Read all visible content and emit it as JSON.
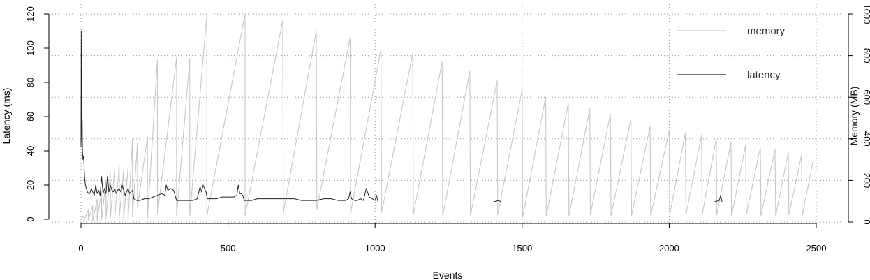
{
  "chart_data": {
    "type": "line",
    "xlabel": "Events",
    "ylabel": "Latency (ms)",
    "y2label": "Memory (MB)",
    "xlim": [
      0,
      2500
    ],
    "ylim": [
      0,
      120
    ],
    "y2lim": [
      0,
      1000
    ],
    "x_ticks": [
      "0",
      "500",
      "1000",
      "1500",
      "2000",
      "2500"
    ],
    "y_ticks": [
      "0",
      "20",
      "40",
      "60",
      "80",
      "100",
      "120"
    ],
    "y2_ticks": [
      "0",
      "200",
      "400",
      "600",
      "800",
      "1000"
    ],
    "grid": true,
    "legend": {
      "position": "top-right",
      "entries": [
        "memory",
        "latency"
      ]
    },
    "series": [
      {
        "name": "memory",
        "axis": "right",
        "color": "#c8c8c8",
        "x": [
          0,
          10,
          10,
          25,
          25,
          40,
          40,
          55,
          55,
          70,
          70,
          85,
          85,
          100,
          100,
          115,
          115,
          130,
          130,
          145,
          145,
          160,
          160,
          175,
          175,
          192,
          192,
          226,
          226,
          260,
          260,
          325,
          325,
          370,
          370,
          428,
          428,
          558,
          558,
          560,
          560,
          686,
          686,
          688,
          688,
          800,
          800,
          802,
          802,
          915,
          915,
          917,
          917,
          1020,
          1020,
          1022,
          1022,
          1128,
          1128,
          1130,
          1130,
          1228,
          1228,
          1230,
          1230,
          1322,
          1322,
          1324,
          1324,
          1415,
          1415,
          1417,
          1417,
          1500,
          1500,
          1502,
          1502,
          1580,
          1580,
          1582,
          1582,
          1657,
          1657,
          1659,
          1659,
          1730,
          1730,
          1732,
          1732,
          1800,
          1800,
          1802,
          1802,
          1870,
          1870,
          1872,
          1872,
          1935,
          1935,
          1937,
          1937,
          2000,
          2000,
          2002,
          2002,
          2055,
          2055,
          2057,
          2057,
          2110,
          2110,
          2112,
          2112,
          2160,
          2160,
          2162,
          2162,
          2210,
          2210,
          2212,
          2212,
          2260,
          2260,
          2262,
          2262,
          2310,
          2310,
          2312,
          2312,
          2360,
          2360,
          2362,
          2362,
          2405,
          2405,
          2407,
          2407,
          2450,
          2450,
          2452,
          2452,
          2490
        ],
        "values": [
          15,
          30,
          5,
          60,
          10,
          80,
          5,
          110,
          8,
          150,
          10,
          200,
          15,
          240,
          20,
          260,
          25,
          270,
          20,
          250,
          15,
          260,
          10,
          400,
          25,
          380,
          70,
          410,
          20,
          780,
          40,
          790,
          30,
          785,
          30,
          1000,
          30,
          1000,
          30,
          45,
          45,
          970,
          970,
          45,
          45,
          920,
          920,
          60,
          60,
          885,
          885,
          45,
          45,
          830,
          830,
          45,
          45,
          810,
          810,
          35,
          35,
          770,
          770,
          30,
          30,
          725,
          725,
          30,
          30,
          680,
          680,
          35,
          35,
          635,
          635,
          25,
          25,
          600,
          600,
          30,
          30,
          570,
          570,
          30,
          30,
          545,
          545,
          35,
          35,
          520,
          520,
          30,
          30,
          495,
          495,
          30,
          30,
          460,
          460,
          30,
          30,
          440,
          440,
          35,
          35,
          430,
          430,
          35,
          35,
          415,
          415,
          35,
          35,
          400,
          400,
          35,
          35,
          385,
          385,
          30,
          30,
          370,
          370,
          35,
          35,
          360,
          360,
          30,
          30,
          350,
          350,
          30,
          30,
          335,
          335,
          35,
          35,
          320,
          320,
          30,
          30,
          300
        ]
      },
      {
        "name": "latency",
        "axis": "left",
        "color": "#222222",
        "x": [
          0,
          1,
          2,
          3,
          4,
          5,
          7,
          9,
          12,
          15,
          18,
          22,
          26,
          30,
          35,
          40,
          45,
          50,
          55,
          60,
          65,
          70,
          75,
          80,
          85,
          90,
          95,
          100,
          105,
          110,
          115,
          120,
          125,
          130,
          135,
          140,
          145,
          150,
          155,
          160,
          165,
          170,
          175,
          180,
          190,
          200,
          215,
          230,
          245,
          260,
          275,
          285,
          290,
          295,
          305,
          315,
          325,
          335,
          350,
          365,
          380,
          395,
          405,
          410,
          415,
          420,
          425,
          430,
          440,
          450,
          460,
          480,
          500,
          520,
          530,
          535,
          540,
          545,
          550,
          555,
          560,
          580,
          600,
          625,
          650,
          675,
          700,
          725,
          750,
          775,
          800,
          825,
          850,
          875,
          900,
          910,
          915,
          920,
          930,
          940,
          950,
          960,
          970,
          980,
          990,
          1000,
          1005,
          1010,
          1030,
          1060,
          1100,
          1150,
          1200,
          1250,
          1300,
          1350,
          1400,
          1420,
          1430,
          1450,
          1500,
          1550,
          1600,
          1650,
          1700,
          1750,
          1800,
          1850,
          1900,
          1950,
          2000,
          2050,
          2100,
          2150,
          2170,
          2175,
          2180,
          2200,
          2250,
          2300,
          2350,
          2400,
          2450,
          2490
        ],
        "values": [
          42,
          110,
          60,
          45,
          58,
          40,
          35,
          37,
          25,
          20,
          18,
          16,
          15,
          15,
          18,
          16,
          14,
          20,
          15,
          17,
          14,
          25,
          15,
          18,
          15,
          25,
          16,
          20,
          17,
          16,
          18,
          15,
          17,
          18,
          16,
          20,
          17,
          14,
          16,
          18,
          15,
          16,
          17,
          12,
          11,
          11,
          12,
          12,
          13,
          14,
          15,
          14,
          20,
          17,
          18,
          17,
          11,
          11,
          11,
          11,
          11,
          12,
          19,
          16,
          20,
          18,
          16,
          12,
          12,
          12,
          12,
          13,
          13,
          13,
          14,
          20,
          15,
          15,
          14,
          11,
          11,
          11,
          12,
          12,
          12,
          12,
          12,
          12,
          11,
          11,
          11,
          12,
          12,
          11,
          11,
          12,
          16,
          12,
          11,
          11,
          12,
          11,
          18,
          13,
          12,
          11,
          14,
          10,
          10,
          10,
          10,
          10,
          10,
          10,
          10,
          10,
          10,
          11,
          10,
          10,
          10,
          10,
          10,
          10,
          10,
          10,
          10,
          10,
          10,
          10,
          10,
          10,
          10,
          10,
          11,
          14,
          10,
          10,
          10,
          10,
          10,
          10,
          10,
          10
        ]
      }
    ]
  }
}
